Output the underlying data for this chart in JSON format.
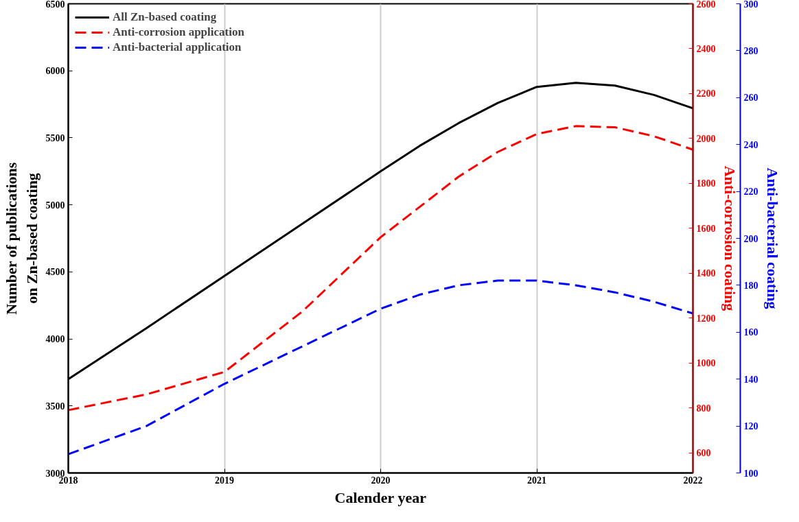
{
  "chart_data": {
    "type": "line",
    "xlabel": "Calender year",
    "ylabel": "Number of publications\non Zn-based coating",
    "y2label": "Anti-corrosion coating",
    "y3label": "Anti-bacterial coating",
    "x": [
      2018,
      2018.5,
      2019,
      2019.5,
      2020,
      2020.25,
      2020.5,
      2020.75,
      2021,
      2021.25,
      2021.5,
      2021.75,
      2022
    ],
    "xlim": [
      2018,
      2022
    ],
    "xticks": [
      2018,
      2019,
      2020,
      2021,
      2022
    ],
    "ylim": [
      3000,
      6500
    ],
    "yticks": [
      3000,
      3500,
      4000,
      4500,
      5000,
      5500,
      6000,
      6500
    ],
    "y2lim": [
      510,
      2600
    ],
    "y2ticks": [
      600,
      800,
      1000,
      1200,
      1400,
      1600,
      1800,
      2000,
      2200,
      2400,
      2600
    ],
    "y3lim": [
      100,
      300
    ],
    "y3ticks": [
      100,
      120,
      140,
      160,
      180,
      200,
      220,
      240,
      260,
      280,
      300
    ],
    "grid": "x",
    "legend": "top left",
    "series": [
      {
        "name": "All Zn-based coating",
        "color": "#000000",
        "line_style": "solid",
        "values": [
          3700,
          4080,
          4470,
          4860,
          5250,
          5440,
          5610,
          5760,
          5880,
          5910,
          5890,
          5820,
          5720
        ]
      },
      {
        "name": "Anti-corrosion application",
        "color": "#ff0000",
        "line_style": "dashed",
        "axis": "y2",
        "values": [
          790,
          860,
          960,
          1230,
          1560,
          1695,
          1830,
          1940,
          2020,
          2055,
          2050,
          2010,
          1950
        ]
      },
      {
        "name": "Anti-bacterial application",
        "color": "#0000ff",
        "line_style": "dashed",
        "axis": "y3",
        "values": [
          108,
          120,
          138,
          154,
          170,
          176,
          180,
          182,
          182,
          180,
          177,
          173,
          168
        ]
      }
    ]
  }
}
